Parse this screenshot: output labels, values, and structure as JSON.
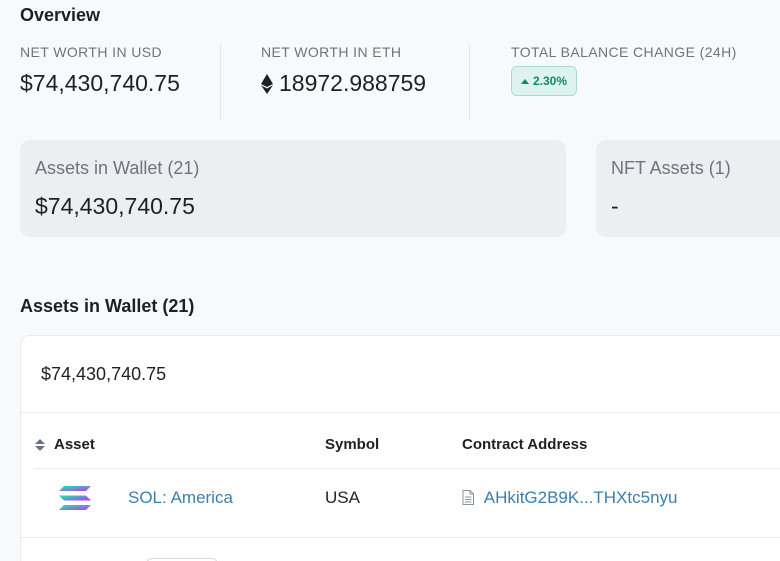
{
  "overview": {
    "title": "Overview",
    "net_worth_usd": {
      "label": "NET WORTH IN USD",
      "value": "$74,430,740.75"
    },
    "net_worth_eth": {
      "label": "NET WORTH IN ETH",
      "value": "18972.988759",
      "icon": "ethereum-icon"
    },
    "balance_change": {
      "label": "TOTAL BALANCE CHANGE (24H)",
      "value": "2.30%",
      "direction": "up",
      "color": "#0c8b6a"
    }
  },
  "cards": {
    "assets": {
      "label": "Assets in Wallet (21)",
      "value": "$74,430,740.75"
    },
    "nft": {
      "label": "NFT Assets (1)",
      "value": "-"
    }
  },
  "assets_section": {
    "title": "Assets in Wallet (21)",
    "total": "$74,430,740.75",
    "columns": [
      "Asset",
      "Symbol",
      "Contract Address"
    ],
    "rows": [
      {
        "icon": "solana-logo-icon",
        "asset_symbol": "SOL",
        "asset_separator": ":",
        "asset_name": "America",
        "symbol": "USA",
        "contract_address": "AHkitG2B9K...THXtc5nyu"
      }
    ]
  },
  "colors": {
    "link": "#3a7fae",
    "positive_badge_bg": "#dff3ee",
    "background": "#f8f9fa"
  }
}
